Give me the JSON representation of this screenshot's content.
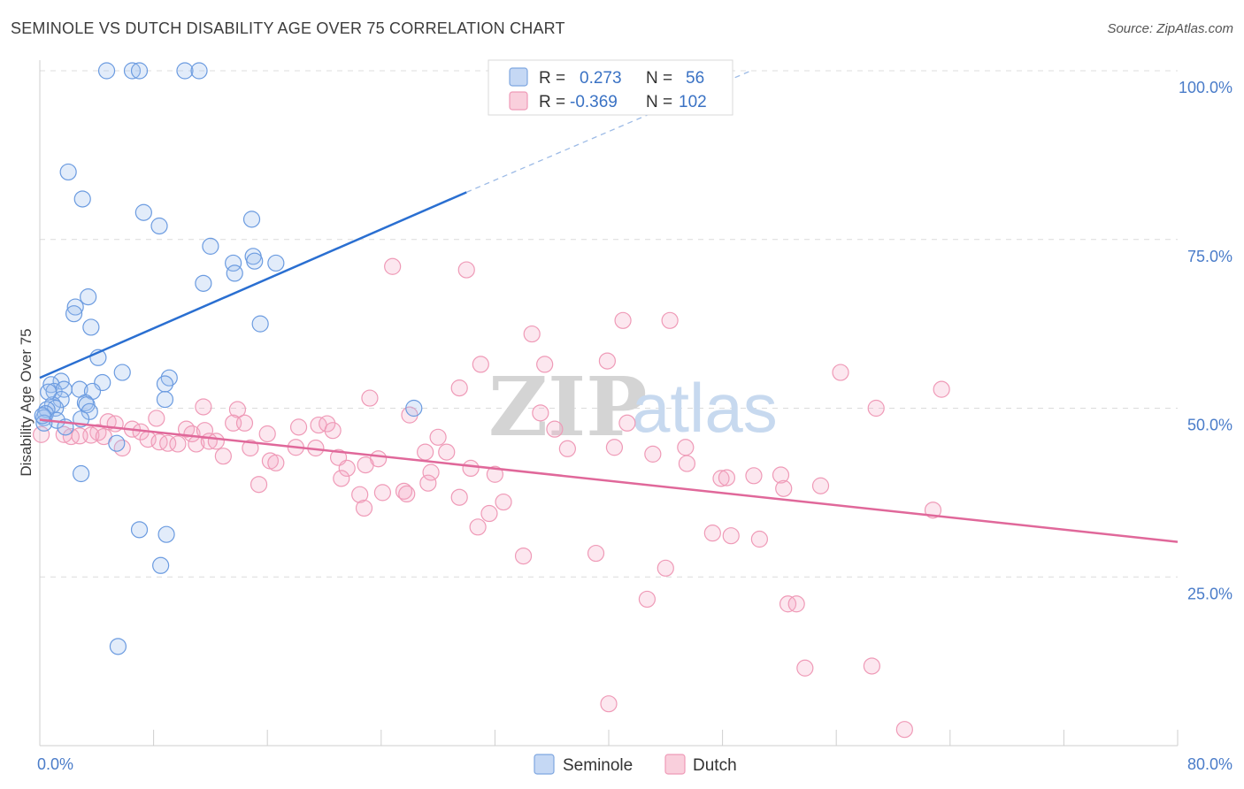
{
  "header": {
    "title": "SEMINOLE VS DUTCH DISABILITY AGE OVER 75 CORRELATION CHART",
    "source": "Source: ZipAtlas.com"
  },
  "watermark": {
    "part1": "ZIP",
    "part2": "atlas"
  },
  "legend_top": {
    "rows": [
      {
        "r_label": "R =",
        "r_value": "0.273",
        "n_label": "N =",
        "n_value": "56"
      },
      {
        "r_label": "R =",
        "r_value": "-0.369",
        "n_label": "N =",
        "n_value": "102"
      }
    ]
  },
  "legend_bottom": {
    "items": [
      "Seminole",
      "Dutch"
    ]
  },
  "chart_data": {
    "type": "scatter",
    "title": "SEMINOLE VS DUTCH DISABILITY AGE OVER 75 CORRELATION CHART",
    "xlabel": "",
    "ylabel": "Disability Age Over 75",
    "xlim": [
      0,
      80
    ],
    "ylim": [
      0,
      100
    ],
    "x_tick_labels": [
      "0.0%",
      "80.0%"
    ],
    "y_tick_labels": [
      "25.0%",
      "50.0%",
      "75.0%",
      "100.0%"
    ],
    "y_ticks": [
      25,
      50,
      75,
      100
    ],
    "grid": "horizontal-dashed",
    "legend_placement": "top-center",
    "colors": {
      "seminole": "#6b9be0",
      "dutch": "#f08cad",
      "seminole_line": "#2a6fd1",
      "dutch_line": "#e0689a"
    },
    "series": [
      {
        "name": "Seminole",
        "R": 0.273,
        "N": 56,
        "trend": {
          "x": [
            0,
            30
          ],
          "y": [
            54.5,
            82
          ],
          "extend_to": [
            50,
            100
          ]
        },
        "points": [
          [
            4.7,
            100
          ],
          [
            6.5,
            100
          ],
          [
            7,
            100
          ],
          [
            10.2,
            100
          ],
          [
            11.2,
            100
          ],
          [
            2,
            85
          ],
          [
            3,
            81
          ],
          [
            7.3,
            79
          ],
          [
            8.4,
            77
          ],
          [
            14.9,
            78
          ],
          [
            12,
            74
          ],
          [
            13.6,
            71.5
          ],
          [
            15,
            72.5
          ],
          [
            15.1,
            71.8
          ],
          [
            16.6,
            71.5
          ],
          [
            13.7,
            70
          ],
          [
            11.5,
            68.5
          ],
          [
            3.4,
            66.5
          ],
          [
            2.5,
            65
          ],
          [
            2.4,
            64
          ],
          [
            3.6,
            62
          ],
          [
            15.5,
            62.5
          ],
          [
            4.1,
            57.5
          ],
          [
            5.8,
            55.3
          ],
          [
            9.1,
            54.5
          ],
          [
            8.8,
            53.6
          ],
          [
            4.4,
            53.8
          ],
          [
            1.5,
            54
          ],
          [
            0.8,
            53.5
          ],
          [
            1.0,
            52.5
          ],
          [
            1.7,
            52.8
          ],
          [
            2.8,
            52.8
          ],
          [
            3.7,
            52.5
          ],
          [
            8.8,
            51.3
          ],
          [
            1.5,
            51.3
          ],
          [
            3.2,
            50.8
          ],
          [
            0.9,
            50.5
          ],
          [
            1.1,
            50.0
          ],
          [
            3.3,
            50.5
          ],
          [
            0.5,
            49.8
          ],
          [
            3.5,
            49.5
          ],
          [
            0.4,
            49.2
          ],
          [
            0.3,
            48.6
          ],
          [
            2.9,
            48.4
          ],
          [
            1.2,
            48.2
          ],
          [
            0.3,
            47.8
          ],
          [
            1.8,
            47.2
          ],
          [
            26.3,
            50
          ],
          [
            5.4,
            44.8
          ],
          [
            2.9,
            40.3
          ],
          [
            7,
            32
          ],
          [
            8.9,
            31.3
          ],
          [
            8.5,
            26.7
          ],
          [
            5.5,
            14.7
          ],
          [
            0.2,
            48.9
          ],
          [
            0.6,
            52.4
          ]
        ]
      },
      {
        "name": "Dutch",
        "R": -0.369,
        "N": 102,
        "trend": {
          "x": [
            0,
            80
          ],
          "y": [
            48.3,
            30.2
          ]
        },
        "points": [
          [
            24.8,
            71
          ],
          [
            30,
            70.5
          ],
          [
            41,
            63
          ],
          [
            44.3,
            63
          ],
          [
            34.6,
            61
          ],
          [
            39.9,
            57
          ],
          [
            31,
            56.5
          ],
          [
            35.5,
            56.5
          ],
          [
            56.3,
            55.3
          ],
          [
            63.4,
            52.8
          ],
          [
            29.5,
            53
          ],
          [
            23.2,
            51.5
          ],
          [
            11.5,
            50.2
          ],
          [
            13.9,
            49.8
          ],
          [
            26,
            49
          ],
          [
            35.2,
            49.3
          ],
          [
            58.8,
            50
          ],
          [
            8.2,
            48.5
          ],
          [
            4.8,
            48
          ],
          [
            5.3,
            47.7
          ],
          [
            13.6,
            47.8
          ],
          [
            14.4,
            47.8
          ],
          [
            19.6,
            47.5
          ],
          [
            18.2,
            47.2
          ],
          [
            20.2,
            47.7
          ],
          [
            20.6,
            46.7
          ],
          [
            6.5,
            46.9
          ],
          [
            7.1,
            46.5
          ],
          [
            10.3,
            46.9
          ],
          [
            10.7,
            46.2
          ],
          [
            11.6,
            46.7
          ],
          [
            16,
            46.2
          ],
          [
            4.1,
            46.4
          ],
          [
            3.6,
            46.0
          ],
          [
            4.5,
            45.8
          ],
          [
            2.2,
            45.8
          ],
          [
            2.8,
            45.9
          ],
          [
            1.7,
            46.1
          ],
          [
            7.6,
            45.4
          ],
          [
            8.4,
            45
          ],
          [
            9,
            44.8
          ],
          [
            9.7,
            44.7
          ],
          [
            11.0,
            44.7
          ],
          [
            11.9,
            45.1
          ],
          [
            12.4,
            45.1
          ],
          [
            5.8,
            44.1
          ],
          [
            28,
            45.7
          ],
          [
            36.2,
            46.9
          ],
          [
            41.3,
            47.8
          ],
          [
            19.4,
            44.1
          ],
          [
            18,
            44.2
          ],
          [
            14.8,
            44.1
          ],
          [
            12.9,
            42.9
          ],
          [
            21,
            42.7
          ],
          [
            16.2,
            42.2
          ],
          [
            16.6,
            41.9
          ],
          [
            23.8,
            42.5
          ],
          [
            22.9,
            41.6
          ],
          [
            21.6,
            41.1
          ],
          [
            27.1,
            43.5
          ],
          [
            28.6,
            43.5
          ],
          [
            37.1,
            44
          ],
          [
            40.4,
            44.2
          ],
          [
            43.1,
            43.2
          ],
          [
            45.4,
            44.2
          ],
          [
            45.5,
            41.8
          ],
          [
            30.3,
            41.1
          ],
          [
            27.5,
            40.5
          ],
          [
            32,
            40.2
          ],
          [
            25.6,
            37.7
          ],
          [
            27.3,
            38.9
          ],
          [
            21.2,
            39.6
          ],
          [
            24.1,
            37.5
          ],
          [
            25.8,
            37.3
          ],
          [
            15.4,
            38.7
          ],
          [
            22.5,
            37.2
          ],
          [
            29.5,
            36.8
          ],
          [
            32.6,
            36.1
          ],
          [
            31.6,
            34.4
          ],
          [
            22.8,
            35.2
          ],
          [
            30.8,
            32.4
          ],
          [
            47.9,
            39.6
          ],
          [
            48.3,
            39.7
          ],
          [
            50.2,
            40
          ],
          [
            52.1,
            40.1
          ],
          [
            52.3,
            38.1
          ],
          [
            54.9,
            38.5
          ],
          [
            62.8,
            34.9
          ],
          [
            47.3,
            31.5
          ],
          [
            48.6,
            31.1
          ],
          [
            50.6,
            30.6
          ],
          [
            39.1,
            28.5
          ],
          [
            34,
            28.1
          ],
          [
            44,
            26.3
          ],
          [
            42.7,
            21.7
          ],
          [
            52.6,
            21
          ],
          [
            53.2,
            21
          ],
          [
            53.8,
            11.5
          ],
          [
            58.5,
            11.8
          ],
          [
            40.0,
            6.2
          ],
          [
            60.8,
            2.4
          ],
          [
            0.1,
            46.1
          ]
        ]
      }
    ]
  }
}
